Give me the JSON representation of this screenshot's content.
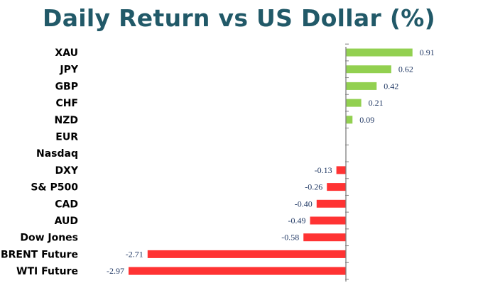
{
  "chart_data": {
    "type": "bar",
    "orientation": "horizontal",
    "title": "Daily Return vs US Dollar (%)",
    "categories": [
      "XAU",
      "JPY",
      "GBP",
      "CHF",
      "NZD",
      "EUR",
      "Nasdaq",
      "DXY",
      "S& P500",
      "CAD",
      "AUD",
      "Dow Jones",
      "BRENT Future",
      "WTI Future"
    ],
    "values": [
      0.91,
      0.62,
      0.42,
      0.21,
      0.09,
      0,
      0,
      -0.13,
      -0.26,
      -0.4,
      -0.49,
      -0.58,
      -2.71,
      -2.97
    ],
    "value_labels": [
      "0.91",
      "0.62",
      "0.42",
      "0.21",
      "0.09",
      "",
      "",
      "-0.13",
      "-0.26",
      "-0.40",
      "-0.49",
      "-0.58",
      "-2.71",
      "-2.97"
    ],
    "xlim": [
      -2.97,
      0.91
    ],
    "grid": false,
    "legend": "none",
    "colors": {
      "positive": "#92D050",
      "negative": "#FF3333",
      "axis": "#808080",
      "category_label": "#000000",
      "value_label": "#203864",
      "title": "#215968"
    }
  }
}
